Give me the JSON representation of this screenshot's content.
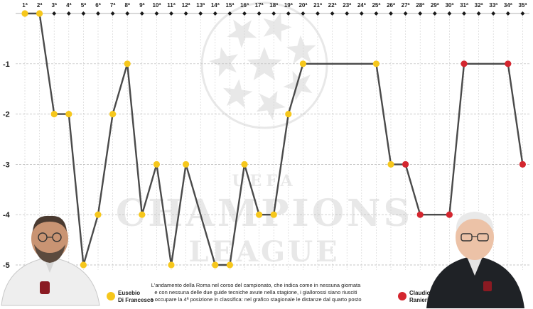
{
  "chart_data": {
    "type": "line",
    "rounds": [
      "1ª",
      "2ª",
      "3ª",
      "4ª",
      "5ª",
      "6ª",
      "7ª",
      "8ª",
      "9ª",
      "10ª",
      "11ª",
      "12ª",
      "13ª",
      "14ª",
      "15ª",
      "16ª",
      "17ª",
      "18ª",
      "19ª",
      "20ª",
      "21ª",
      "22ª",
      "23ª",
      "24ª",
      "25ª",
      "26ª",
      "27ª",
      "28ª",
      "29ª",
      "30ª",
      "31ª",
      "32ª",
      "33ª",
      "34ª",
      "35ª"
    ],
    "values": [
      0,
      0,
      -2,
      -2,
      -5,
      -4,
      -2,
      -1,
      -4,
      -3,
      -5,
      -3,
      null,
      -5,
      -5,
      -3,
      -4,
      -4,
      -2,
      -1,
      null,
      null,
      null,
      null,
      -1,
      -3,
      -3,
      -4,
      null,
      -4,
      -1,
      null,
      null,
      -1,
      -3
    ],
    "plotted_values": [
      0,
      0,
      -2,
      -2,
      -5,
      -4,
      -2,
      -1,
      -4,
      -3,
      -5,
      -3,
      -4,
      -5,
      -5,
      -3,
      -4,
      -4,
      -2,
      -1,
      -1,
      -1,
      -1,
      -1,
      -1,
      -3,
      -3,
      -4,
      -4,
      -4,
      -1,
      -1,
      -1,
      -1,
      -3
    ],
    "coach": [
      "fr",
      "fr",
      "fr",
      "fr",
      "fr",
      "fr",
      "fr",
      "fr",
      "fr",
      "fr",
      "fr",
      "fr",
      "fr",
      "fr",
      "fr",
      "fr",
      "fr",
      "fr",
      "fr",
      "fr",
      "fr",
      "fr",
      "fr",
      "fr",
      "fr",
      "fr",
      "ra",
      "ra",
      "ra",
      "ra",
      "ra",
      "ra",
      "ra",
      "ra",
      "ra"
    ],
    "ylim": [
      -5,
      0
    ],
    "yticks": [
      -1,
      -2,
      -3,
      -4,
      -5
    ],
    "ytick_labels": [
      "-1",
      "-2",
      "-3",
      "-4",
      "-5"
    ],
    "grid": true,
    "line_color": "#4a4a4a",
    "legend": [
      {
        "key": "fr",
        "name_line1": "Eusebio",
        "name_line2": "Di Francesco",
        "color": "#f6c71c"
      },
      {
        "key": "ra",
        "name_line1": "Claudio",
        "name_line2": "Ranieri",
        "color": "#d4262f"
      }
    ]
  },
  "caption": {
    "lines": [
      "L'andamento della Roma nel corso del campionato, che indica come in nessuna giornata",
      "e con nessuna delle due guide tecniche avute nella stagione, i giallorossi siano riusciti",
      "a occupare la 4ª posizione in classifica: nel grafico stagionale le distanze dal quarto posto"
    ]
  },
  "watermark": {
    "line1": "CHAMPIONS",
    "line2": "LEAGUE",
    "arc_text": "UEFA"
  }
}
